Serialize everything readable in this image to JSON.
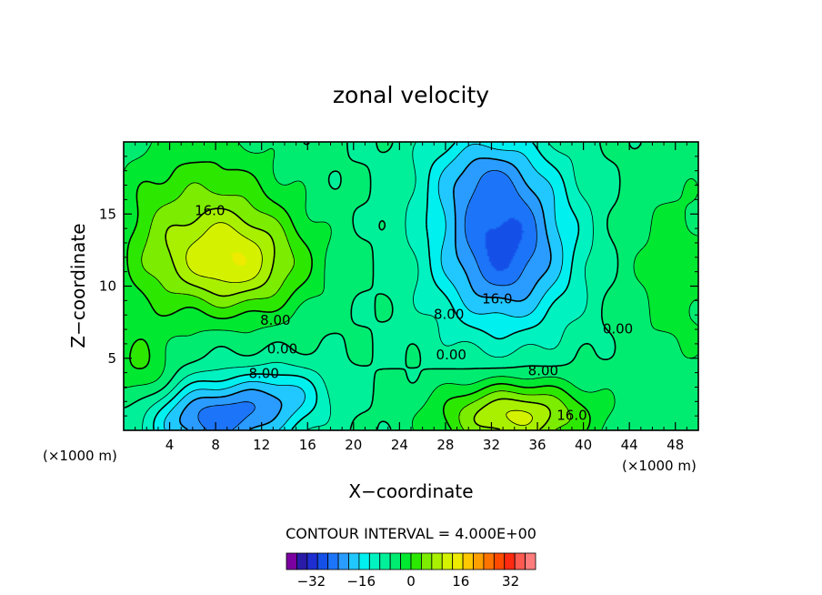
{
  "chart_data": {
    "type": "heatmap",
    "subtype": "filled-contour",
    "title": "zonal velocity",
    "xlabel": "X−coordinate",
    "ylabel": "Z−coordinate",
    "x_units_left": "(×1000 m)",
    "x_units_right": "(×1000 m)",
    "xlim": [
      0,
      50
    ],
    "ylim": [
      0,
      20
    ],
    "x_ticks": [
      4,
      8,
      12,
      16,
      20,
      24,
      28,
      32,
      36,
      40,
      44,
      48
    ],
    "y_ticks": [
      5,
      10,
      15
    ],
    "contour_interval_text": "CONTOUR INTERVAL = 4.000E+00",
    "contour_labels": [
      {
        "text": "16.0",
        "x": 7.5,
        "y": 15.2
      },
      {
        "text": "8.00",
        "x": 13.2,
        "y": 7.6
      },
      {
        "text": "0.00",
        "x": 13.8,
        "y": 5.6
      },
      {
        "text": "8.00",
        "x": 12.2,
        "y": 3.9
      },
      {
        "text": "16.0",
        "x": 32.5,
        "y": 9.1
      },
      {
        "text": "8.00",
        "x": 28.3,
        "y": 8.0
      },
      {
        "text": "0.00",
        "x": 28.5,
        "y": 5.2
      },
      {
        "text": "8.00",
        "x": 36.5,
        "y": 4.1
      },
      {
        "text": "16.0",
        "x": 39.0,
        "y": 1.0
      },
      {
        "text": "0.00",
        "x": 43.0,
        "y": 7.0
      }
    ],
    "features": [
      {
        "name": "upper-left positive jet",
        "x": 9,
        "z": 11.5,
        "peak": 18
      },
      {
        "name": "upper-center negative core",
        "x": 33,
        "z": 12.5,
        "peak": -22
      },
      {
        "name": "lower-left negative core",
        "x": 7.5,
        "z": 0.8,
        "peak": -20
      },
      {
        "name": "lower-right positive jet",
        "x": 34,
        "z": 1.0,
        "peak": 20
      },
      {
        "name": "left positive patch",
        "x": 2,
        "z": 4,
        "peak": 6
      },
      {
        "name": "far-right positive region",
        "x": 48,
        "z": 10,
        "peak": 6
      }
    ],
    "colorbar": {
      "min": -40,
      "max": 40,
      "step": 4,
      "tick_labels": [
        "−32",
        "−16",
        "0",
        "16",
        "32"
      ],
      "tick_values": [
        -32,
        -16,
        0,
        16,
        32
      ],
      "colors": [
        "#7a00a0",
        "#2a1aa8",
        "#1e2ed0",
        "#1450e8",
        "#1c74f8",
        "#2a9cff",
        "#20c8ff",
        "#00f0f0",
        "#00f2c0",
        "#00f09a",
        "#00ec70",
        "#00e830",
        "#2ce800",
        "#7cec00",
        "#a8f000",
        "#d4f200",
        "#eeea00",
        "#ffc800",
        "#ffa000",
        "#ff7400",
        "#ff4a00",
        "#ff2a10",
        "#ff5a50",
        "#ff7c7c"
      ]
    }
  }
}
